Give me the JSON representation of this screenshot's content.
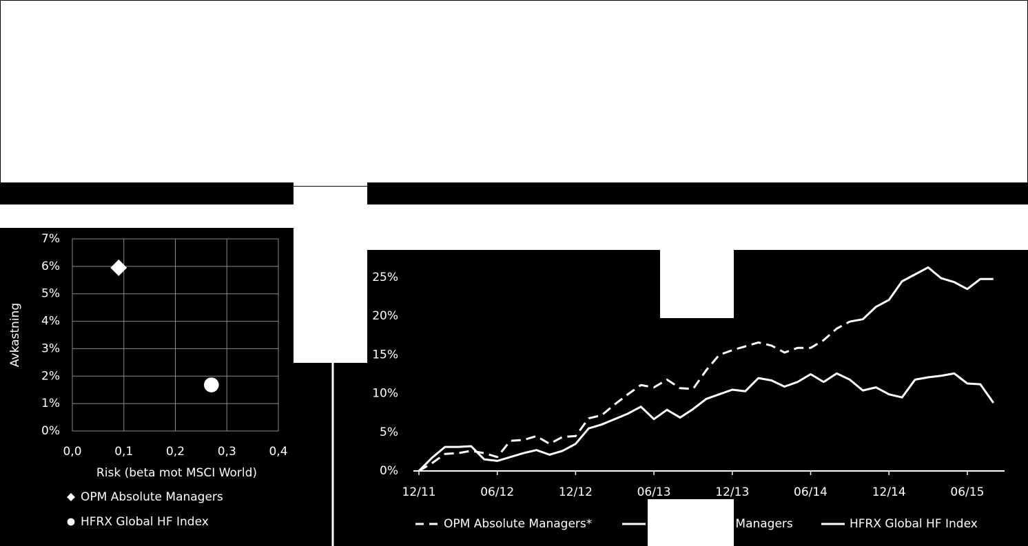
{
  "chart_data": [
    {
      "type": "scatter",
      "y_label": "Avkastning",
      "x_label": "Risk (beta mot MSCI World)",
      "xlim": [
        0,
        0.4
      ],
      "xticks": [
        {
          "value": 0,
          "label": "0,0"
        },
        {
          "value": 0.1,
          "label": "0,1"
        },
        {
          "value": 0.2,
          "label": "0,2"
        },
        {
          "value": 0.3,
          "label": "0,3"
        },
        {
          "value": 0.4,
          "label": "0,4"
        }
      ],
      "ylim": [
        0,
        7
      ],
      "yticks": [
        {
          "value": 0,
          "label": "0%"
        },
        {
          "value": 1,
          "label": "1%"
        },
        {
          "value": 2,
          "label": "2%"
        },
        {
          "value": 3,
          "label": "3%"
        },
        {
          "value": 4,
          "label": "4%"
        },
        {
          "value": 5,
          "label": "5%"
        },
        {
          "value": 6,
          "label": "6%"
        },
        {
          "value": 7,
          "label": "7%"
        }
      ],
      "grid": true,
      "series": [
        {
          "name": "OPM Absolute Managers",
          "color": "#ffffff",
          "marker": "diamond",
          "x": [
            0.09
          ],
          "values": [
            5.95
          ]
        },
        {
          "name": "HFRX Global HF Index",
          "color": "#ffffff",
          "marker": "circle",
          "x": [
            0.27
          ],
          "values": [
            1.68
          ]
        }
      ]
    },
    {
      "type": "line",
      "categories": [
        "12/11",
        null,
        null,
        null,
        null,
        null,
        "06/12",
        null,
        null,
        null,
        null,
        null,
        "12/12",
        null,
        null,
        null,
        null,
        null,
        "06/13",
        null,
        null,
        null,
        null,
        null,
        "12/13",
        null,
        null,
        null,
        null,
        null,
        "06/14",
        null,
        null,
        null,
        null,
        null,
        "12/14",
        null,
        null,
        null,
        null,
        null,
        "06/15",
        null,
        null
      ],
      "ylim": [
        0,
        25
      ],
      "yticks": [
        {
          "value": 0,
          "label": "0%"
        },
        {
          "value": 5,
          "label": "5%"
        },
        {
          "value": 10,
          "label": "10%"
        },
        {
          "value": 15,
          "label": "15%"
        },
        {
          "value": 20,
          "label": "20%"
        },
        {
          "value": 25,
          "label": "25%"
        }
      ],
      "grid": false,
      "series": [
        {
          "name": "OPM Absolute Managers*",
          "color": "#ffffff",
          "dashed": true,
          "values": [
            0,
            1.0,
            2.2,
            2.3,
            2.6,
            2.3,
            1.8,
            3.9,
            4.0,
            4.5,
            3.5,
            4.4,
            4.5,
            6.8,
            7.2,
            8.6,
            9.9,
            11.1,
            10.8,
            11.8,
            10.7,
            10.6,
            13.0,
            15.0,
            15.6,
            16.1,
            16.6,
            16.2,
            15.3,
            15.9,
            15.9,
            16.9,
            18.4,
            19.3,
            null,
            null,
            null,
            null,
            null,
            null,
            null,
            null,
            null,
            null,
            null
          ]
        },
        {
          "name": "OPM Absolute Managers",
          "color": "#ffffff",
          "dashed": false,
          "values": [
            null,
            null,
            null,
            null,
            null,
            null,
            null,
            null,
            null,
            null,
            null,
            null,
            null,
            null,
            null,
            null,
            null,
            null,
            null,
            null,
            null,
            null,
            null,
            null,
            null,
            null,
            null,
            null,
            null,
            null,
            null,
            null,
            null,
            19.3,
            19.6,
            21.2,
            22.1,
            24.5,
            25.4,
            26.3,
            24.9,
            24.4,
            23.5,
            24.8,
            24.8
          ]
        },
        {
          "name": "HFRX Global HF Index",
          "color": "#ffffff",
          "dashed": false,
          "values": [
            0,
            1.7,
            3.1,
            3.1,
            3.2,
            1.5,
            1.3,
            1.8,
            2.3,
            2.7,
            2.1,
            2.6,
            3.5,
            5.5,
            6.0,
            6.7,
            7.4,
            8.3,
            6.7,
            7.9,
            6.9,
            8.0,
            9.3,
            9.9,
            10.5,
            10.3,
            12.0,
            11.7,
            10.9,
            11.5,
            12.5,
            11.5,
            12.6,
            11.8,
            10.4,
            10.8,
            9.9,
            9.5,
            11.8,
            12.1,
            12.3,
            12.6,
            11.3,
            11.2,
            8.8
          ]
        }
      ]
    }
  ]
}
